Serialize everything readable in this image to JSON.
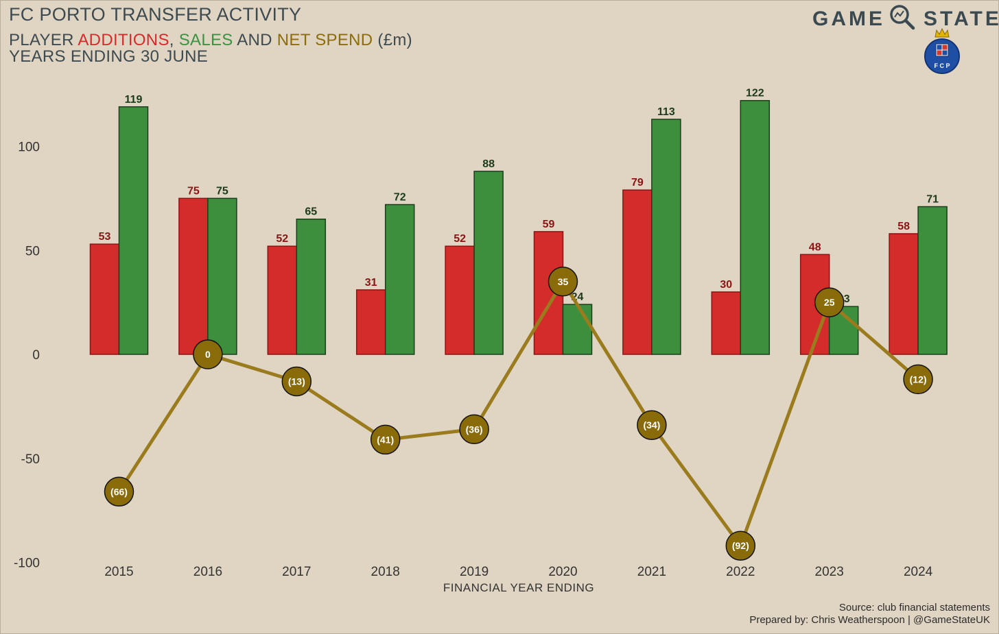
{
  "header": {
    "title": "FC PORTO TRANSFER ACTIVITY",
    "subtitle_prefix": "PLAYER ",
    "subtitle_additions": "ADDITIONS",
    "subtitle_comma": ", ",
    "subtitle_sales": "SALES",
    "subtitle_and": " AND ",
    "subtitle_net": "NET SPEND",
    "subtitle_unit": " (£m)",
    "subtitle_line2": "YEARS ENDING 30 JUNE"
  },
  "brand": {
    "name_left": "GAME",
    "name_right": "STATE",
    "crest_letters": "F C P"
  },
  "footer": {
    "source": "Source: club financial statements",
    "prepared_by": "Prepared by: Chris Weatherspoon | @GameStateUK"
  },
  "colors": {
    "additions": "#d42b2b",
    "additions_border": "#8a1414",
    "sales": "#3d8f3e",
    "sales_border": "#1a3d1a",
    "net": "#8a6b0a",
    "net_line": "#9a7b1e",
    "additions_label": "#8a1414",
    "sales_label": "#1a3a1a"
  },
  "chart_data": {
    "type": "bar",
    "title": "FC PORTO TRANSFER ACTIVITY",
    "xlabel": "FINANCIAL YEAR ENDING",
    "ylabel": "",
    "ylim": [
      -100,
      130
    ],
    "yticks": [
      -100,
      -50,
      0,
      50,
      100
    ],
    "categories": [
      "2015",
      "2016",
      "2017",
      "2018",
      "2019",
      "2020",
      "2021",
      "2022",
      "2023",
      "2024"
    ],
    "series": [
      {
        "name": "Additions",
        "type": "bar",
        "values": [
          53,
          75,
          52,
          31,
          52,
          59,
          79,
          30,
          48,
          58
        ]
      },
      {
        "name": "Sales",
        "type": "bar",
        "values": [
          119,
          75,
          65,
          72,
          88,
          24,
          113,
          122,
          23,
          71
        ]
      },
      {
        "name": "Net spend",
        "type": "line",
        "values": [
          -66,
          0,
          -13,
          -41,
          -36,
          35,
          -34,
          -92,
          25,
          -12
        ]
      }
    ],
    "net_labels": [
      "(66)",
      "0",
      "(13)",
      "(41)",
      "(36)",
      "35",
      "(34)",
      "(92)",
      "25",
      "(12)"
    ],
    "legend": "in subtitle",
    "grid": false
  }
}
